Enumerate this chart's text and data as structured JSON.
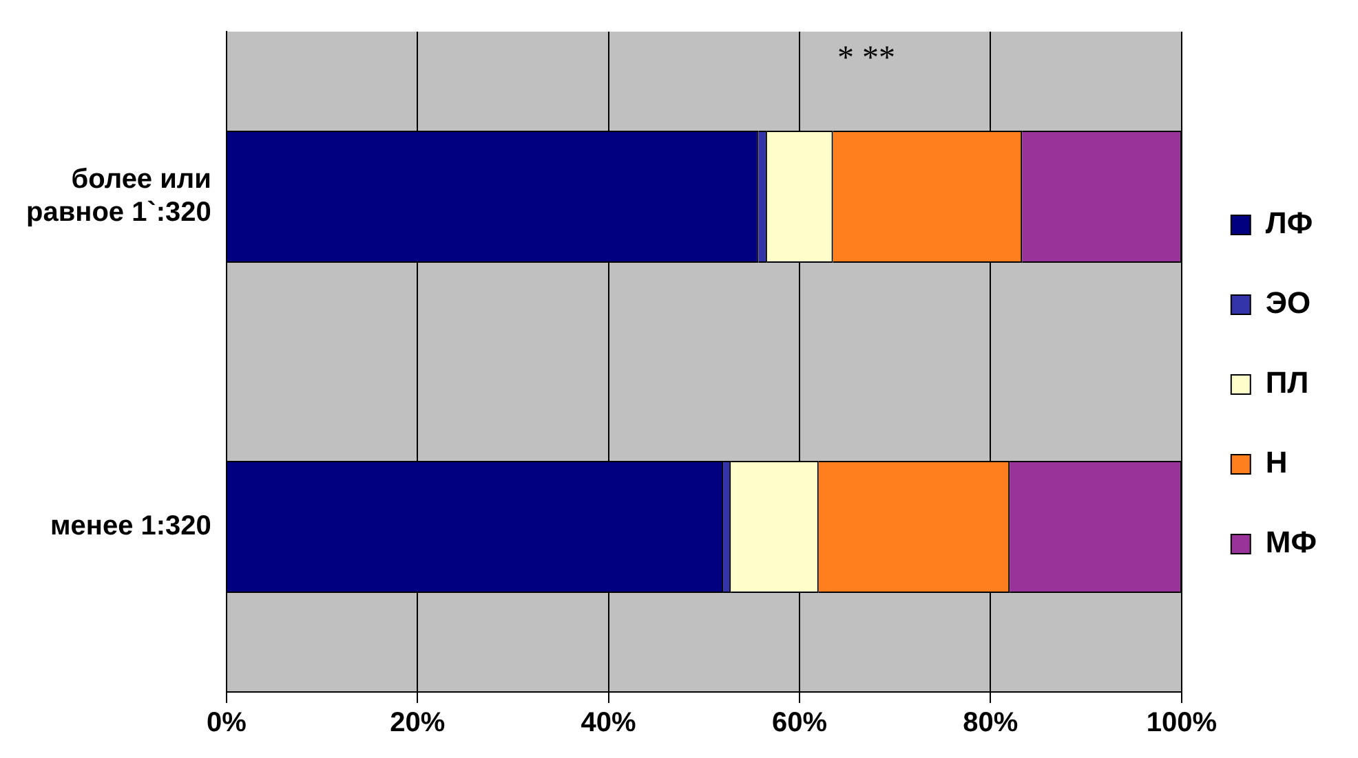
{
  "chart_data": {
    "type": "bar",
    "orientation": "horizontal",
    "stacked": true,
    "categories": [
      "более или равное 1`:320",
      "менее 1:320"
    ],
    "series": [
      {
        "name": "ЛФ",
        "color": "#000080",
        "values": [
          55.7,
          52.0
        ]
      },
      {
        "name": "ЭО",
        "color": "#3333aa",
        "values": [
          0.9,
          0.8
        ]
      },
      {
        "name": "ПЛ",
        "color": "#ffffcc",
        "values": [
          6.9,
          9.2
        ]
      },
      {
        "name": "Н",
        "color": "#ff7f1f",
        "values": [
          19.8,
          20.0
        ]
      },
      {
        "name": "МФ",
        "color": "#993399",
        "values": [
          16.7,
          18.0
        ]
      }
    ],
    "xlim": [
      0,
      100
    ],
    "xticks": [
      {
        "value": 0,
        "label": "0%"
      },
      {
        "value": 20,
        "label": "20%"
      },
      {
        "value": 40,
        "label": "40%"
      },
      {
        "value": 60,
        "label": "60%"
      },
      {
        "value": 80,
        "label": "80%"
      },
      {
        "value": 100,
        "label": "100%"
      }
    ],
    "grid": "x",
    "legend": "right",
    "annotations": [
      "* **"
    ]
  }
}
